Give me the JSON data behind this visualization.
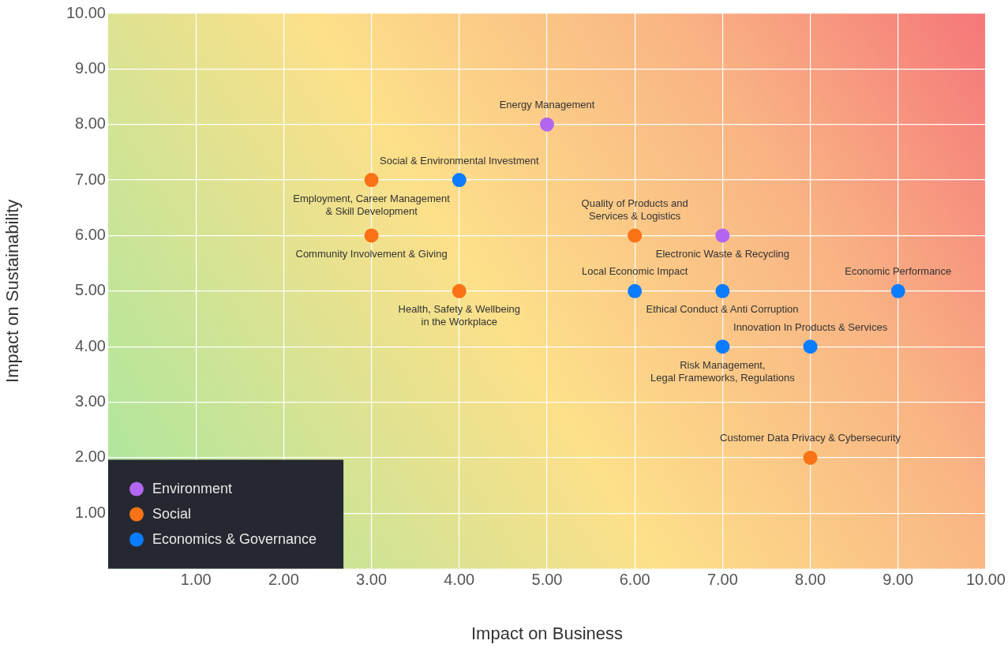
{
  "chart_data": {
    "type": "scatter",
    "xlabel": "Impact on Business",
    "ylabel": "Impact on Sustainability",
    "xlim": [
      0,
      10
    ],
    "ylim": [
      0,
      10
    ],
    "xticks": [
      {
        "value": 1,
        "label": "1.00"
      },
      {
        "value": 2,
        "label": "2.00"
      },
      {
        "value": 3,
        "label": "3.00"
      },
      {
        "value": 4,
        "label": "4.00"
      },
      {
        "value": 5,
        "label": "5.00"
      },
      {
        "value": 6,
        "label": "6.00"
      },
      {
        "value": 7,
        "label": "7.00"
      },
      {
        "value": 8,
        "label": "8.00"
      },
      {
        "value": 9,
        "label": "9.00"
      },
      {
        "value": 10,
        "label": "10.00"
      }
    ],
    "yticks": [
      {
        "value": 1,
        "label": "1.00"
      },
      {
        "value": 2,
        "label": "2.00"
      },
      {
        "value": 3,
        "label": "3.00"
      },
      {
        "value": 4,
        "label": "4.00"
      },
      {
        "value": 5,
        "label": "5.00"
      },
      {
        "value": 6,
        "label": "6.00"
      },
      {
        "value": 7,
        "label": "7.00"
      },
      {
        "value": 8,
        "label": "8.00"
      },
      {
        "value": 9,
        "label": "9.00"
      },
      {
        "value": 10,
        "label": "10.00"
      }
    ],
    "grid": true,
    "legend": "bottom left",
    "marker": "circle",
    "series": [
      {
        "name": "Environment",
        "color": "#b266f2",
        "x": [
          5,
          7
        ],
        "values": [
          8,
          6
        ]
      },
      {
        "name": "Social",
        "color": "#f97316",
        "x": [
          3,
          3,
          4,
          6,
          8
        ],
        "values": [
          7,
          6,
          5,
          6,
          2
        ]
      },
      {
        "name": "Economics & Governance",
        "color": "#0a7cff",
        "x": [
          4,
          6,
          7,
          9,
          8,
          7
        ],
        "values": [
          7,
          5,
          5,
          5,
          4,
          4
        ]
      }
    ],
    "annotations": [
      {
        "text": "Energy Management",
        "x": 5,
        "y": 8
      },
      {
        "text": "Social & Environmental Investment",
        "x": 4,
        "y": 7
      },
      {
        "text": "Employment, Career Management\n& Skill Development",
        "x": 3,
        "y": 7
      },
      {
        "text": "Community Involvement & Giving",
        "x": 3,
        "y": 6
      },
      {
        "text": "Health, Safety & Wellbeing\nin the Workplace",
        "x": 4,
        "y": 5
      },
      {
        "text": "Quality of Products and\nServices & Logistics",
        "x": 6,
        "y": 6
      },
      {
        "text": "Electronic Waste & Recycling",
        "x": 7,
        "y": 6
      },
      {
        "text": "Local Economic Impact",
        "x": 6,
        "y": 5
      },
      {
        "text": "Ethical Conduct & Anti Corruption",
        "x": 7,
        "y": 5
      },
      {
        "text": "Economic Performance",
        "x": 9,
        "y": 5
      },
      {
        "text": "Innovation In Products & Services",
        "x": 8,
        "y": 4
      },
      {
        "text": "Risk Management,\nLegal Frameworks, Regulations",
        "x": 7,
        "y": 4
      },
      {
        "text": "Customer Data Privacy & Cybersecurity",
        "x": 8,
        "y": 2
      }
    ]
  }
}
